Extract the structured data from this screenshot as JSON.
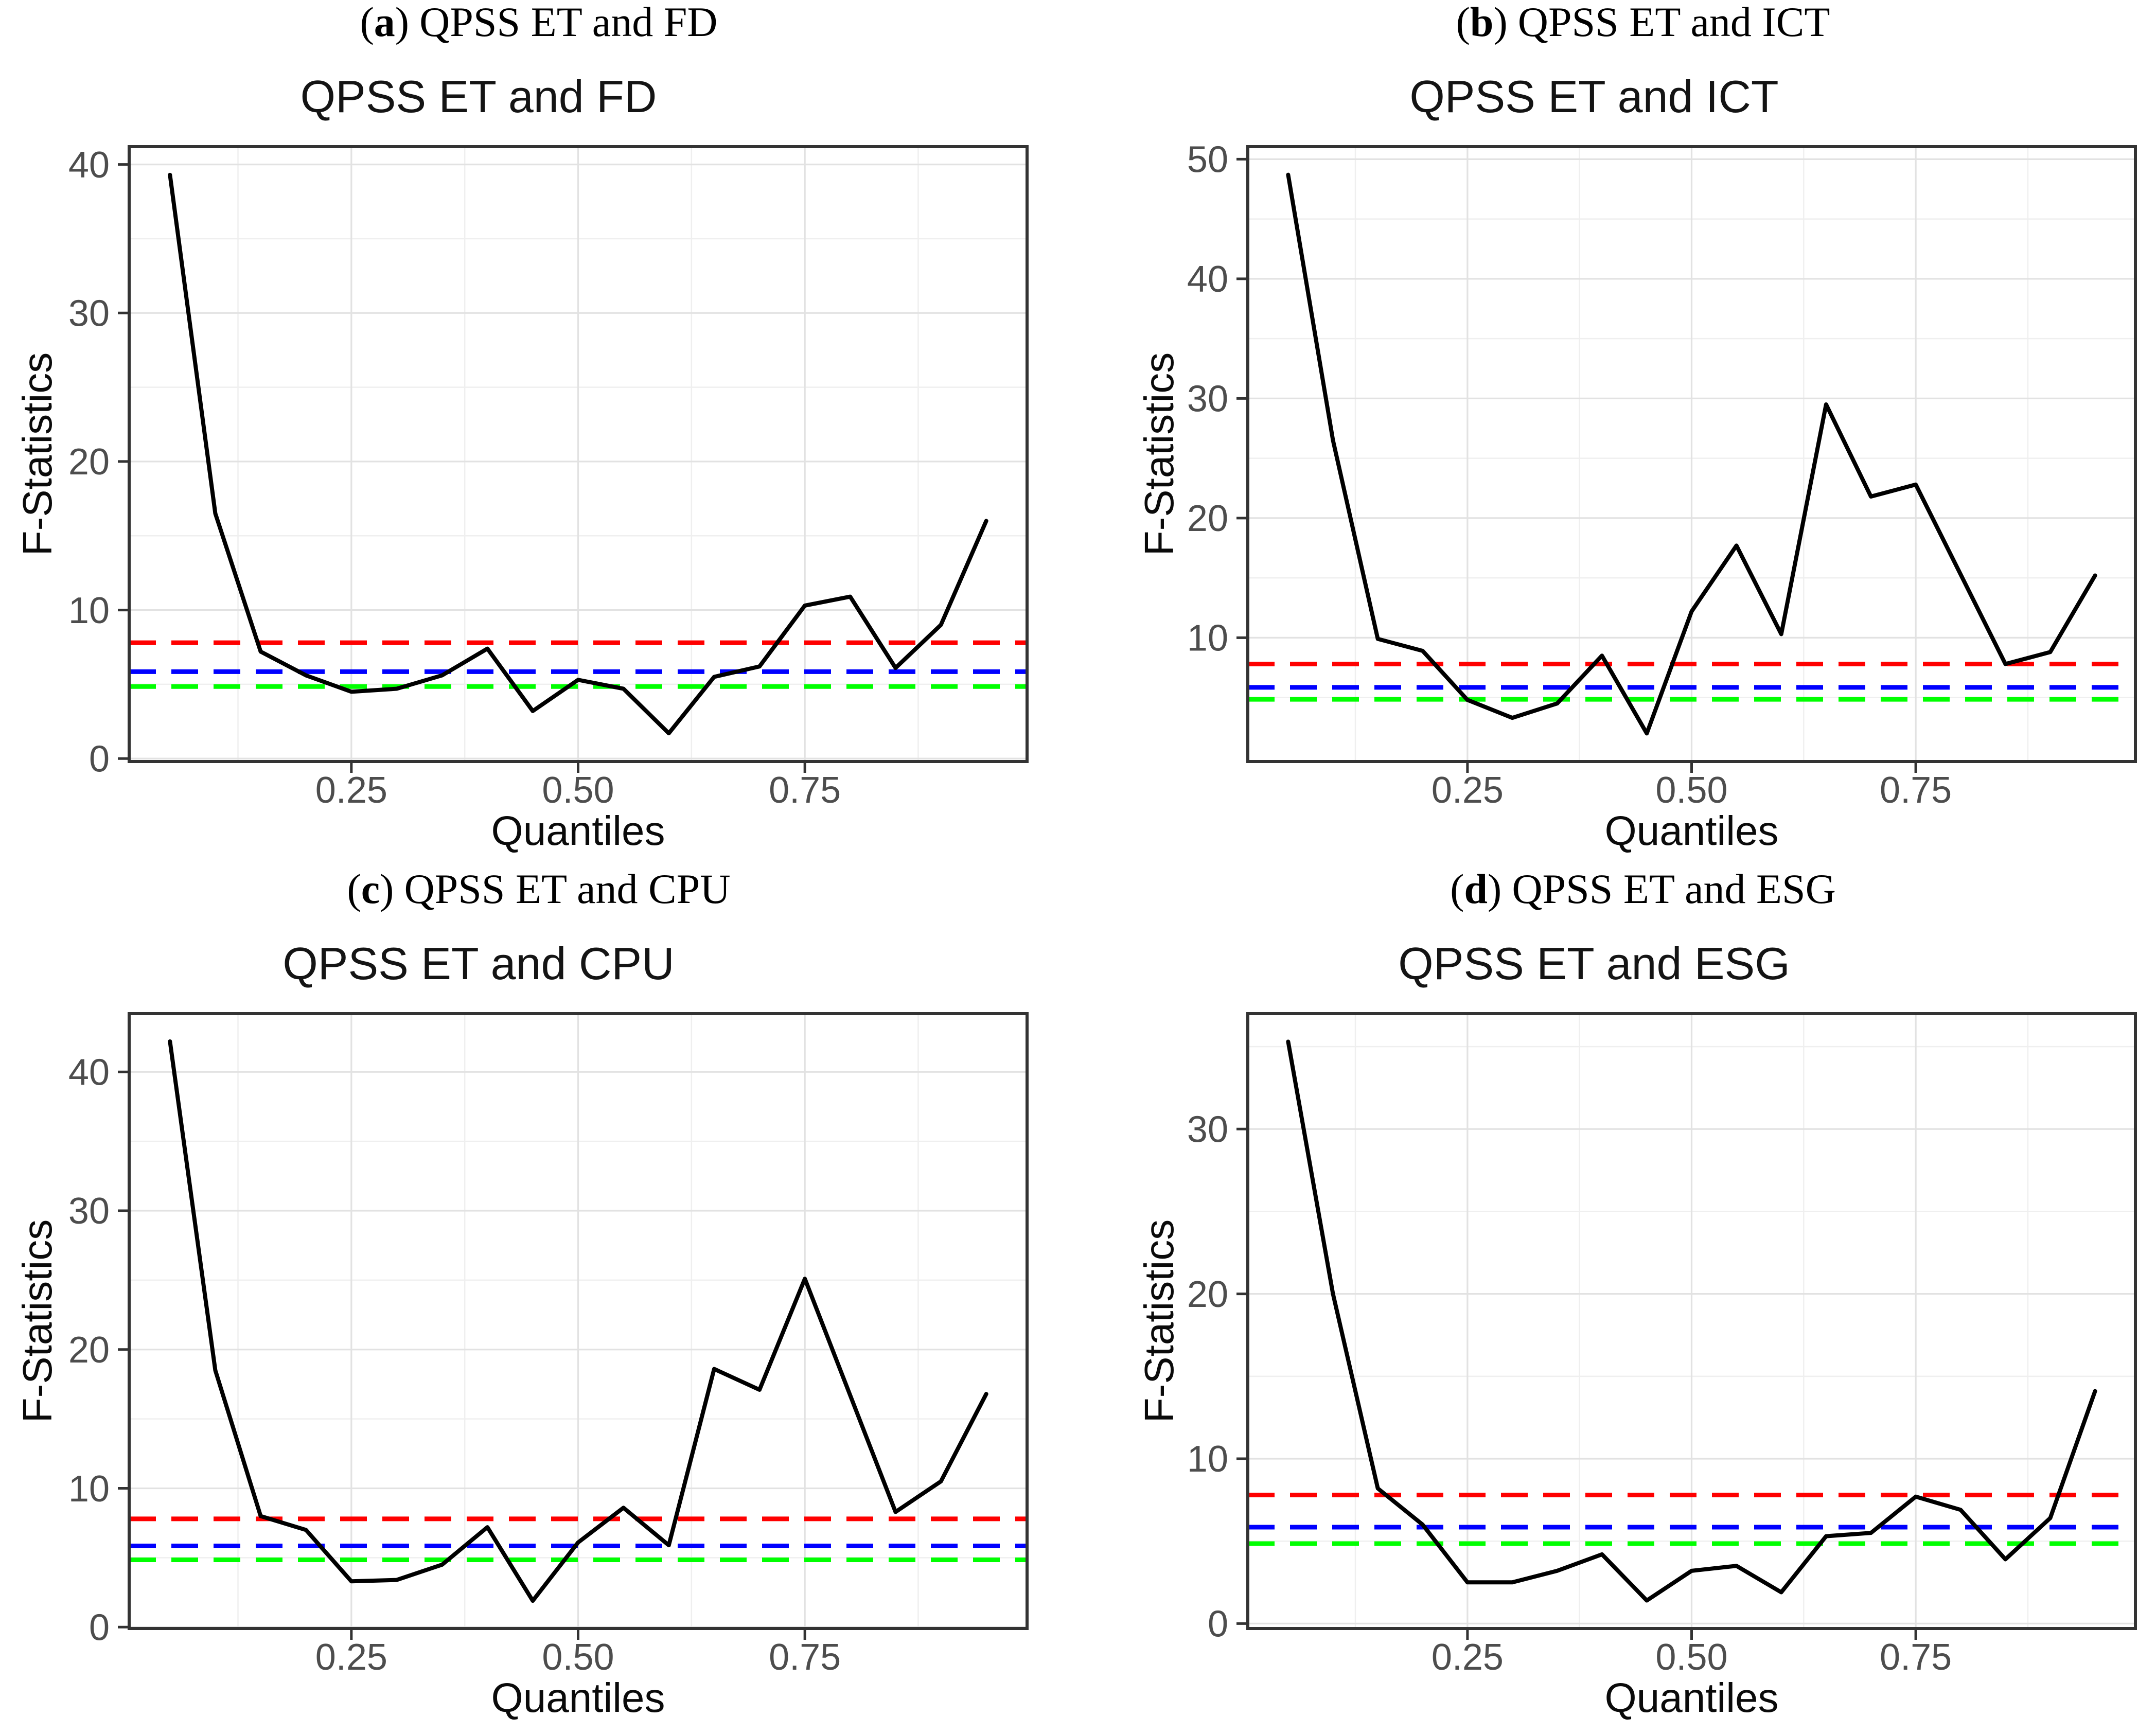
{
  "figure": {
    "description": "2x2 grid of quantile F-statistic line charts",
    "xlabel": "Quantiles",
    "ylabel": "F-Statistics"
  },
  "chart_data": [
    {
      "type": "line",
      "caption": {
        "open": "(",
        "letter": "a",
        "close": ")",
        "text": "QPSS ET and FD"
      },
      "title": "QPSS ET and FD",
      "xlabel": "Quantiles",
      "ylabel": "F-Statistics",
      "x": [
        0.05,
        0.1,
        0.15,
        0.2,
        0.25,
        0.3,
        0.35,
        0.4,
        0.45,
        0.5,
        0.55,
        0.6,
        0.65,
        0.7,
        0.75,
        0.8,
        0.85,
        0.9,
        0.95
      ],
      "series": [
        {
          "name": "F-statistics",
          "color": "#000000",
          "values": [
            39.3,
            16.5,
            7.2,
            5.6,
            4.5,
            4.7,
            5.6,
            7.4,
            3.2,
            5.3,
            4.7,
            1.7,
            5.5,
            6.2,
            10.3,
            10.9,
            6.1,
            9.0,
            16.0
          ]
        }
      ],
      "hlines": [
        {
          "color": "#FF0000",
          "value": 7.8
        },
        {
          "color": "#0000FF",
          "value": 5.85
        },
        {
          "color": "#00FF00",
          "value": 4.85
        }
      ],
      "xlim": [
        0.005,
        0.995
      ],
      "ylim": [
        -0.2,
        41.2
      ],
      "xticks": [
        0.25,
        0.5,
        0.75
      ],
      "xtick_labels": [
        "0.25",
        "0.50",
        "0.75"
      ],
      "yticks": [
        0,
        10,
        20,
        30,
        40
      ],
      "grid": "major+minor",
      "legend": "none"
    },
    {
      "type": "line",
      "caption": {
        "open": "(",
        "letter": "b",
        "close": ")",
        "text": "QPSS ET and ICT"
      },
      "title": "QPSS ET and ICT",
      "xlabel": "Quantiles",
      "ylabel": "F-Statistics",
      "x": [
        0.05,
        0.1,
        0.15,
        0.2,
        0.25,
        0.3,
        0.35,
        0.4,
        0.45,
        0.5,
        0.55,
        0.6,
        0.65,
        0.7,
        0.75,
        0.8,
        0.85,
        0.9,
        0.95
      ],
      "series": [
        {
          "name": "F-statistics",
          "color": "#000000",
          "values": [
            48.7,
            26.5,
            9.9,
            8.9,
            4.8,
            3.3,
            4.5,
            8.5,
            2.0,
            12.2,
            17.7,
            10.3,
            29.5,
            21.8,
            22.8,
            15.3,
            7.8,
            8.8,
            15.2
          ]
        }
      ],
      "hlines": [
        {
          "color": "#FF0000",
          "value": 7.8
        },
        {
          "color": "#0000FF",
          "value": 5.85
        },
        {
          "color": "#00FF00",
          "value": 4.85
        }
      ],
      "xlim": [
        0.005,
        0.995
      ],
      "ylim": [
        -0.35,
        51.05
      ],
      "xticks": [
        0.25,
        0.5,
        0.75
      ],
      "xtick_labels": [
        "0.25",
        "0.50",
        "0.75"
      ],
      "yticks": [
        10,
        20,
        30,
        40,
        50
      ],
      "grid": "major+minor",
      "legend": "none"
    },
    {
      "type": "line",
      "caption": {
        "open": "(",
        "letter": "c",
        "close": ")",
        "text": "QPSS ET and CPU"
      },
      "title": "QPSS ET and CPU",
      "xlabel": "Quantiles",
      "ylabel": "F-Statistics",
      "x": [
        0.05,
        0.1,
        0.15,
        0.2,
        0.25,
        0.3,
        0.35,
        0.4,
        0.45,
        0.5,
        0.55,
        0.6,
        0.65,
        0.7,
        0.75,
        0.8,
        0.85,
        0.9,
        0.95
      ],
      "series": [
        {
          "name": "F-statistics",
          "color": "#000000",
          "values": [
            42.2,
            18.5,
            8.0,
            7.0,
            3.3,
            3.4,
            4.5,
            7.2,
            1.9,
            6.1,
            8.6,
            5.9,
            18.6,
            17.1,
            25.1,
            16.7,
            8.3,
            10.5,
            16.8
          ]
        }
      ],
      "hlines": [
        {
          "color": "#FF0000",
          "value": 7.8
        },
        {
          "color": "#0000FF",
          "value": 5.85
        },
        {
          "color": "#00FF00",
          "value": 4.85
        }
      ],
      "xlim": [
        0.005,
        0.995
      ],
      "ylim": [
        -0.1,
        44.2
      ],
      "xticks": [
        0.25,
        0.5,
        0.75
      ],
      "xtick_labels": [
        "0.25",
        "0.50",
        "0.75"
      ],
      "yticks": [
        0,
        10,
        20,
        30,
        40
      ],
      "grid": "major+minor",
      "legend": "none"
    },
    {
      "type": "line",
      "caption": {
        "open": "(",
        "letter": "d",
        "close": ")",
        "text": "QPSS ET and ESG"
      },
      "title": "QPSS ET and ESG",
      "xlabel": "Quantiles",
      "ylabel": "F-Statistics",
      "x": [
        0.05,
        0.1,
        0.15,
        0.2,
        0.25,
        0.3,
        0.35,
        0.4,
        0.45,
        0.5,
        0.55,
        0.6,
        0.65,
        0.7,
        0.75,
        0.8,
        0.85,
        0.9,
        0.95
      ],
      "series": [
        {
          "name": "F-statistics",
          "color": "#000000",
          "values": [
            35.3,
            20.0,
            8.2,
            6.0,
            2.5,
            2.5,
            3.2,
            4.2,
            1.4,
            3.2,
            3.5,
            1.9,
            5.3,
            5.5,
            7.7,
            6.9,
            3.9,
            6.4,
            14.1
          ]
        }
      ],
      "hlines": [
        {
          "color": "#FF0000",
          "value": 7.8
        },
        {
          "color": "#0000FF",
          "value": 5.85
        },
        {
          "color": "#00FF00",
          "value": 4.85
        }
      ],
      "xlim": [
        0.005,
        0.995
      ],
      "ylim": [
        -0.3,
        37.0
      ],
      "xticks": [
        0.25,
        0.5,
        0.75
      ],
      "xtick_labels": [
        "0.25",
        "0.50",
        "0.75"
      ],
      "yticks": [
        0,
        10,
        20,
        30
      ],
      "grid": "major+minor",
      "legend": "none"
    }
  ]
}
